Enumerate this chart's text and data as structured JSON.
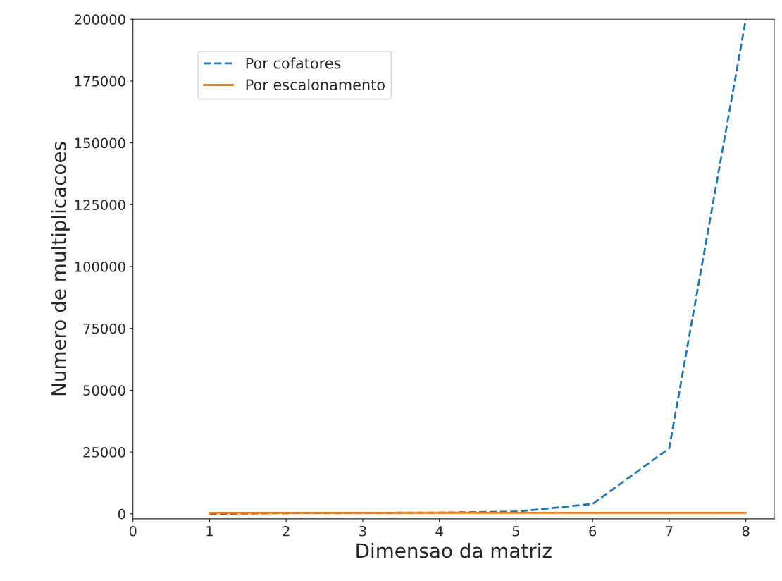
{
  "chart_data": {
    "type": "line",
    "xlabel": "Dimensao da matriz",
    "ylabel": "Numero de multiplicacoes",
    "x": [
      1,
      2,
      3,
      4,
      5,
      6,
      7,
      8
    ],
    "series": [
      {
        "name": "Por cofatores",
        "color": "#1f77b4",
        "line_style": "dashed",
        "values": [
          0,
          300,
          400,
          500,
          900,
          4000,
          26500,
          200000
        ]
      },
      {
        "name": "Por escalonamento",
        "color": "#ff7f0e",
        "line_style": "solid",
        "values": [
          400,
          400,
          400,
          400,
          400,
          400,
          400,
          400
        ]
      }
    ],
    "xlim": [
      0,
      8.37
    ],
    "xticks": [
      0,
      1,
      2,
      3,
      4,
      5,
      6,
      7,
      8
    ],
    "ylim": [
      -2000,
      200000
    ],
    "yticks": [
      0,
      25000,
      50000,
      75000,
      100000,
      125000,
      150000,
      175000,
      200000
    ],
    "legend": "top left",
    "grid": false
  }
}
